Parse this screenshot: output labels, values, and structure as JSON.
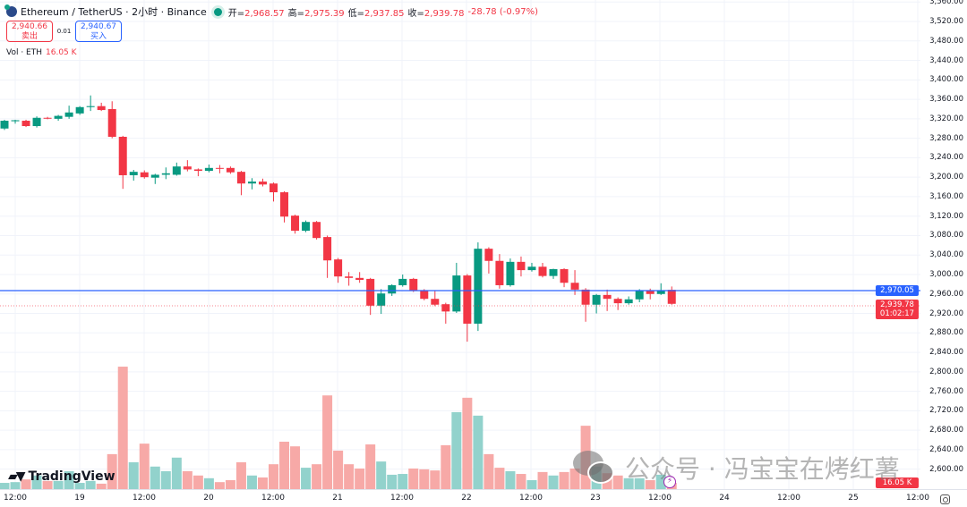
{
  "header": {
    "symbol": "Ethereum / TetherUS · 2小时 · Binance",
    "open_label": "开=",
    "open": "2,968.57",
    "high_label": "高=",
    "high": "2,975.39",
    "low_label": "低=",
    "low": "2,937.85",
    "close_label": "收=",
    "close": "2,939.78",
    "change": "-28.78 (-0.97%)"
  },
  "trade": {
    "sell_price": "2,940.66",
    "sell_label": "卖出",
    "spread": "0.01",
    "buy_price": "2,940.67",
    "buy_label": "买入"
  },
  "volume_legend": {
    "label": "Vol · ETH",
    "value": "16.05 K"
  },
  "price_axis": [
    "3,560.00",
    "3,520.00",
    "3,480.00",
    "3,440.00",
    "3,400.00",
    "3,360.00",
    "3,320.00",
    "3,280.00",
    "3,240.00",
    "3,200.00",
    "3,160.00",
    "3,120.00",
    "3,080.00",
    "3,040.00",
    "3,000.00",
    "2,960.00",
    "2,920.00",
    "2,880.00",
    "2,840.00",
    "2,800.00",
    "2,760.00",
    "2,720.00",
    "2,680.00",
    "2,640.00",
    "2,600.00"
  ],
  "price_tags": {
    "line_price": "2,970.05",
    "last_price": "2,939.78",
    "countdown": "01:02:17",
    "last_volume": "16.05 K"
  },
  "time_axis": [
    "12:00",
    "19",
    "12:00",
    "20",
    "12:00",
    "21",
    "12:00",
    "22",
    "12:00",
    "23",
    "12:00",
    "24",
    "12:00",
    "25",
    "12:00"
  ],
  "colors": {
    "up": "#089981",
    "down": "#f23645",
    "up_vol": "#92d2cc",
    "down_vol": "#f7a9a7",
    "line": "#2962ff"
  },
  "branding": {
    "logo": "TradingView",
    "watermark": "公众号 · 冯宝宝在烤红薯"
  },
  "chart_data": {
    "type": "candlestick",
    "interval": "2h",
    "ylim": [
      2600,
      3560
    ],
    "horizontal_line": 2970.05,
    "candles": [
      [
        3300,
        3318,
        3297,
        3316
      ],
      [
        3315,
        3318,
        3310,
        3317
      ],
      [
        3316,
        3318,
        3303,
        3305
      ],
      [
        3305,
        3325,
        3302,
        3322
      ],
      [
        3322,
        3324,
        3319,
        3321
      ],
      [
        3320,
        3328,
        3316,
        3326
      ],
      [
        3324,
        3347,
        3320,
        3333
      ],
      [
        3331,
        3346,
        3328,
        3344
      ],
      [
        3344,
        3368,
        3336,
        3346
      ],
      [
        3346,
        3353,
        3336,
        3338
      ],
      [
        3340,
        3356,
        3280,
        3283
      ],
      [
        3283,
        3285,
        3176,
        3204
      ],
      [
        3204,
        3215,
        3193,
        3211
      ],
      [
        3210,
        3214,
        3197,
        3200
      ],
      [
        3199,
        3207,
        3186,
        3205
      ],
      [
        3205,
        3220,
        3196,
        3208
      ],
      [
        3205,
        3230,
        3203,
        3222
      ],
      [
        3222,
        3235,
        3212,
        3216
      ],
      [
        3216,
        3218,
        3202,
        3213
      ],
      [
        3213,
        3226,
        3210,
        3219
      ],
      [
        3219,
        3225,
        3208,
        3218
      ],
      [
        3219,
        3222,
        3207,
        3210
      ],
      [
        3211,
        3213,
        3163,
        3187
      ],
      [
        3187,
        3198,
        3175,
        3191
      ],
      [
        3191,
        3197,
        3181,
        3185
      ],
      [
        3187,
        3189,
        3150,
        3169
      ],
      [
        3169,
        3171,
        3107,
        3119
      ],
      [
        3121,
        3123,
        3084,
        3090
      ],
      [
        3090,
        3111,
        3087,
        3108
      ],
      [
        3108,
        3110,
        3072,
        3075
      ],
      [
        3077,
        3080,
        2993,
        3029
      ],
      [
        3031,
        3034,
        2983,
        2996
      ],
      [
        2996,
        3005,
        2977,
        2993
      ],
      [
        2993,
        3005,
        2983,
        2989
      ],
      [
        2991,
        2993,
        2917,
        2936
      ],
      [
        2936,
        2970,
        2919,
        2961
      ],
      [
        2961,
        2980,
        2956,
        2978
      ],
      [
        2978,
        3000,
        2975,
        2991
      ],
      [
        2991,
        2993,
        2964,
        2967
      ],
      [
        2967,
        2970,
        2947,
        2950
      ],
      [
        2950,
        2967,
        2935,
        2938
      ],
      [
        2939,
        2942,
        2899,
        2924
      ],
      [
        2924,
        3024,
        2921,
        2998
      ],
      [
        2998,
        3001,
        2862,
        2899
      ],
      [
        2899,
        3066,
        2884,
        3053
      ],
      [
        3053,
        3056,
        3002,
        3028
      ],
      [
        3028,
        3042,
        2971,
        2978
      ],
      [
        2978,
        3033,
        2975,
        3026
      ],
      [
        3026,
        3037,
        2996,
        3009
      ],
      [
        3009,
        3024,
        3006,
        3016
      ],
      [
        3016,
        3024,
        2994,
        2997
      ],
      [
        2997,
        3012,
        2991,
        3011
      ],
      [
        3011,
        3013,
        2974,
        2983
      ],
      [
        2983,
        3009,
        2958,
        2969
      ],
      [
        2969,
        2972,
        2903,
        2938
      ],
      [
        2938,
        2960,
        2920,
        2958
      ],
      [
        2958,
        2969,
        2925,
        2950
      ],
      [
        2950,
        2953,
        2927,
        2941
      ],
      [
        2941,
        2955,
        2938,
        2949
      ],
      [
        2949,
        2970,
        2943,
        2967
      ],
      [
        2967,
        2971,
        2949,
        2960
      ],
      [
        2960,
        2982,
        2958,
        2967
      ],
      [
        2968.57,
        2975.39,
        2937.85,
        2939.78
      ]
    ],
    "volumes_k": [
      16,
      18,
      25,
      35,
      21,
      21,
      46,
      16,
      21,
      14,
      90,
      315,
      69,
      117,
      58,
      46,
      81,
      46,
      35,
      28,
      18,
      23,
      69,
      35,
      30,
      64,
      122,
      110,
      55,
      64,
      241,
      99,
      64,
      53,
      115,
      71,
      37,
      39,
      53,
      51,
      48,
      113,
      198,
      235,
      189,
      90,
      55,
      46,
      39,
      23,
      44,
      35,
      44,
      53,
      163,
      58,
      41,
      35,
      28,
      28,
      23,
      37,
      16.05
    ]
  }
}
